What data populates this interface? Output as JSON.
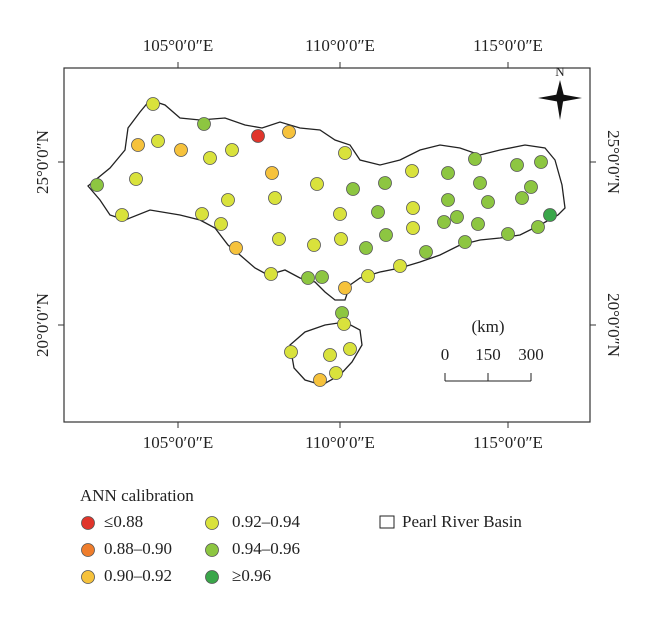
{
  "map": {
    "x_labels": [
      "105°0′0″E",
      "110°0′0″E",
      "115°0′0″E"
    ],
    "y_labels": [
      "25°0′0″N",
      "20°0′0″N"
    ],
    "north": "N",
    "scale": {
      "unit": "(km)",
      "ticks": [
        0,
        150,
        300
      ]
    }
  },
  "legend": {
    "title": "ANN calibration",
    "items": [
      {
        "label": "≤0.88",
        "color": "#e0352b"
      },
      {
        "label": "0.88–0.90",
        "color": "#ef7d2c"
      },
      {
        "label": "0.90–0.92",
        "color": "#f6c23c"
      },
      {
        "label": "0.92–0.94",
        "color": "#d9e23c"
      },
      {
        "label": "0.94–0.96",
        "color": "#8dc641"
      },
      {
        "label": "≥0.96",
        "color": "#3aa64a"
      }
    ],
    "basin": "Pearl River Basin"
  }
}
